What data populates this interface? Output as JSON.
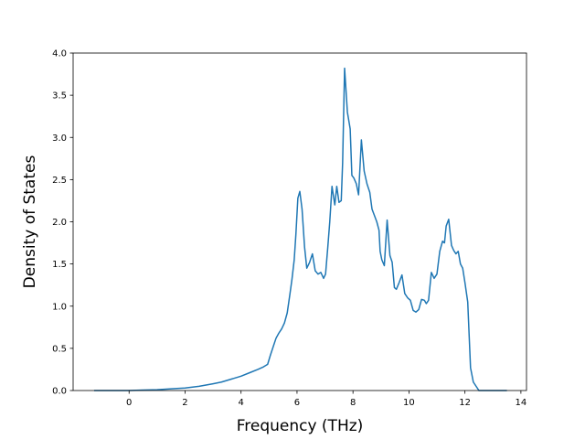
{
  "chart_data": {
    "type": "line",
    "title": "",
    "xlabel": "Frequency (THz)",
    "ylabel": "Density of States",
    "xlim": [
      -2.0,
      14.2
    ],
    "ylim": [
      0.0,
      4.0
    ],
    "xticks": [
      0,
      2,
      4,
      6,
      8,
      10,
      12,
      14
    ],
    "xtick_labels": [
      "0",
      "2",
      "4",
      "6",
      "8",
      "10",
      "12",
      "14"
    ],
    "yticks": [
      0.0,
      0.5,
      1.0,
      1.5,
      2.0,
      2.5,
      3.0,
      3.5,
      4.0
    ],
    "ytick_labels": [
      "0.0",
      "0.5",
      "1.0",
      "1.5",
      "2.0",
      "2.5",
      "3.0",
      "3.5",
      "4.0"
    ],
    "grid": false,
    "colors": {
      "line": "#1f77b4",
      "axes": "#000000",
      "background": "#ffffff"
    },
    "series": [
      {
        "x": [
          -1.25,
          -0.5,
          0.0,
          0.5,
          1.0,
          1.5,
          2.0,
          2.5,
          3.0,
          3.3,
          3.6,
          4.0,
          4.3,
          4.6,
          4.8,
          4.95,
          5.05,
          5.15,
          5.25,
          5.35,
          5.45,
          5.55,
          5.65,
          5.75,
          5.82,
          5.9,
          5.96,
          6.03,
          6.1,
          6.18,
          6.27,
          6.35,
          6.45,
          6.55,
          6.65,
          6.75,
          6.85,
          6.95,
          7.02,
          7.1,
          7.17,
          7.25,
          7.35,
          7.42,
          7.5,
          7.58,
          7.63,
          7.7,
          7.8,
          7.9,
          7.96,
          8.03,
          8.12,
          8.2,
          8.3,
          8.4,
          8.5,
          8.6,
          8.68,
          8.76,
          8.85,
          8.93,
          8.97,
          9.03,
          9.12,
          9.22,
          9.32,
          9.4,
          9.48,
          9.55,
          9.65,
          9.75,
          9.85,
          9.95,
          10.05,
          10.15,
          10.25,
          10.35,
          10.45,
          10.55,
          10.62,
          10.7,
          10.8,
          10.9,
          11.0,
          11.1,
          11.2,
          11.27,
          11.33,
          11.42,
          11.52,
          11.6,
          11.68,
          11.76,
          11.84,
          11.92,
          12.0,
          12.1,
          12.2,
          12.3,
          12.5,
          13.0,
          13.5
        ],
        "values": [
          0.0,
          0.0,
          0.0,
          0.005,
          0.01,
          0.02,
          0.03,
          0.05,
          0.08,
          0.1,
          0.13,
          0.17,
          0.21,
          0.25,
          0.28,
          0.31,
          0.42,
          0.52,
          0.62,
          0.68,
          0.73,
          0.8,
          0.92,
          1.15,
          1.32,
          1.55,
          1.85,
          2.28,
          2.36,
          2.15,
          1.7,
          1.45,
          1.52,
          1.62,
          1.42,
          1.38,
          1.4,
          1.33,
          1.38,
          1.7,
          2.0,
          2.42,
          2.2,
          2.42,
          2.23,
          2.25,
          2.7,
          3.82,
          3.3,
          3.1,
          2.55,
          2.52,
          2.45,
          2.32,
          2.97,
          2.6,
          2.45,
          2.35,
          2.15,
          2.08,
          2.0,
          1.9,
          1.65,
          1.55,
          1.48,
          2.02,
          1.6,
          1.52,
          1.22,
          1.2,
          1.28,
          1.37,
          1.15,
          1.1,
          1.07,
          0.95,
          0.93,
          0.96,
          1.08,
          1.07,
          1.03,
          1.07,
          1.4,
          1.33,
          1.38,
          1.65,
          1.77,
          1.75,
          1.95,
          2.03,
          1.72,
          1.66,
          1.62,
          1.65,
          1.5,
          1.45,
          1.28,
          1.05,
          0.27,
          0.1,
          0.0,
          0.0,
          0.0
        ]
      }
    ]
  }
}
